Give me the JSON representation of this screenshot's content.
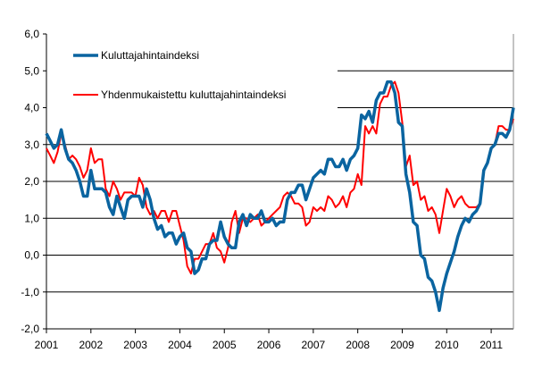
{
  "chart_data": {
    "type": "line",
    "title": "",
    "xlabel": "",
    "ylabel": "",
    "ylim": [
      -2.0,
      6.0
    ],
    "yticks": [
      "6,0",
      "5,0",
      "4,0",
      "3,0",
      "2,0",
      "1,0",
      "0,0",
      "-1,0",
      "-2,0"
    ],
    "ytick_values": [
      6,
      5,
      4,
      3,
      2,
      1,
      0,
      -1,
      -2
    ],
    "xticks": [
      "2001",
      "2002",
      "2003",
      "2004",
      "2005",
      "2006",
      "2007",
      "2008",
      "2009",
      "2010",
      "2011"
    ],
    "x_start": "2001-01",
    "x_end": "2011-07",
    "frequency": "monthly",
    "grid": true,
    "legend_placement": "top-left",
    "series": [
      {
        "name": "Kuluttajahintaindeksi",
        "color": "#0a64a0",
        "values": [
          3.3,
          3.1,
          2.9,
          3.0,
          3.4,
          2.9,
          2.6,
          2.5,
          2.3,
          2.0,
          1.6,
          1.6,
          2.3,
          1.8,
          1.8,
          1.8,
          1.7,
          1.3,
          1.1,
          1.6,
          1.3,
          1.0,
          1.5,
          1.6,
          1.6,
          1.6,
          1.3,
          1.8,
          1.5,
          1.0,
          0.7,
          0.8,
          0.5,
          0.6,
          0.6,
          0.3,
          0.5,
          0.6,
          0.2,
          0.1,
          -0.5,
          -0.4,
          -0.1,
          -0.1,
          0.3,
          0.4,
          0.4,
          0.9,
          0.5,
          0.3,
          0.2,
          0.2,
          0.9,
          1.1,
          0.8,
          1.1,
          1.0,
          1.0,
          1.2,
          0.9,
          0.9,
          1.0,
          0.8,
          0.9,
          0.9,
          1.5,
          1.7,
          1.7,
          1.9,
          1.9,
          1.5,
          1.8,
          2.1,
          2.2,
          2.3,
          2.2,
          2.6,
          2.6,
          2.4,
          2.4,
          2.6,
          2.3,
          2.6,
          2.7,
          2.9,
          3.8,
          3.7,
          3.9,
          3.6,
          4.2,
          4.4,
          4.4,
          4.7,
          4.7,
          4.4,
          3.6,
          3.5,
          2.2,
          1.7,
          0.9,
          0.8,
          0.0,
          -0.1,
          -0.6,
          -0.7,
          -1.0,
          -1.5,
          -0.9,
          -0.5,
          -0.2,
          0.1,
          0.5,
          0.8,
          1.0,
          0.9,
          1.1,
          1.2,
          1.4,
          2.3,
          2.5,
          2.9,
          3.0,
          3.3,
          3.3,
          3.2,
          3.4,
          4.0
        ]
      },
      {
        "name": "Yhdenmukaistettu kuluttajahintaindeksi",
        "color": "#ff0000",
        "values": [
          2.9,
          2.7,
          2.5,
          2.8,
          3.3,
          3.0,
          2.6,
          2.7,
          2.6,
          2.4,
          2.1,
          2.3,
          2.9,
          2.5,
          2.6,
          2.6,
          1.8,
          1.6,
          2.0,
          1.8,
          1.5,
          1.7,
          1.7,
          1.7,
          1.6,
          2.1,
          1.9,
          1.3,
          1.1,
          1.2,
          1.0,
          1.2,
          1.2,
          0.9,
          1.2,
          1.2,
          0.8,
          0.4,
          -0.3,
          -0.5,
          -0.1,
          -0.1,
          0.1,
          0.3,
          0.3,
          0.6,
          0.2,
          0.1,
          -0.2,
          0.2,
          0.9,
          1.2,
          0.6,
          1.0,
          1.0,
          0.9,
          1.0,
          1.1,
          0.8,
          0.9,
          1.0,
          1.1,
          1.2,
          1.3,
          1.6,
          1.7,
          1.6,
          1.4,
          1.4,
          1.3,
          0.8,
          0.9,
          1.3,
          1.2,
          1.3,
          1.2,
          1.6,
          1.5,
          1.3,
          1.4,
          1.6,
          1.3,
          1.7,
          1.8,
          2.2,
          1.9,
          3.5,
          3.3,
          3.5,
          3.3,
          4.1,
          4.3,
          4.3,
          4.6,
          4.7,
          4.4,
          3.6,
          2.4,
          2.7,
          1.9,
          2.0,
          1.5,
          1.6,
          1.2,
          1.3,
          1.1,
          0.6,
          1.2,
          1.8,
          1.6,
          1.3,
          1.5,
          1.6,
          1.4,
          1.3,
          1.3,
          1.3,
          1.4,
          2.3,
          2.5,
          2.9,
          3.0,
          3.5,
          3.5,
          3.4,
          3.4,
          3.7
        ]
      }
    ]
  }
}
